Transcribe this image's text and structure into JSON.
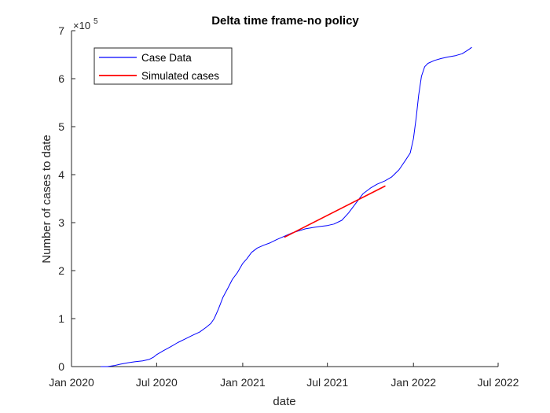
{
  "chart_data": {
    "type": "line",
    "title": "Delta time frame-no policy",
    "xlabel": "date",
    "ylabel": "Number of cases to date",
    "y_exponent_label": {
      "base": "×10",
      "exponent": "5"
    },
    "x_domain": [
      "2020-01-01",
      "2022-07-01"
    ],
    "x_ticks": [
      {
        "date": "2020-01-01",
        "label": "Jan 2020"
      },
      {
        "date": "2020-07-01",
        "label": "Jul 2020"
      },
      {
        "date": "2021-01-01",
        "label": "Jan 2021"
      },
      {
        "date": "2021-07-01",
        "label": "Jul 2021"
      },
      {
        "date": "2022-01-01",
        "label": "Jan 2022"
      },
      {
        "date": "2022-07-01",
        "label": "Jul 2022"
      }
    ],
    "ylim": [
      0,
      7
    ],
    "y_ticks": [
      {
        "value": 0,
        "label": "0"
      },
      {
        "value": 1,
        "label": "1"
      },
      {
        "value": 2,
        "label": "2"
      },
      {
        "value": 3,
        "label": "3"
      },
      {
        "value": 4,
        "label": "4"
      },
      {
        "value": 5,
        "label": "5"
      },
      {
        "value": 6,
        "label": "6"
      },
      {
        "value": 7,
        "label": "7"
      }
    ],
    "grid": false,
    "legend_position": "top-left",
    "series": [
      {
        "name": "Case Data",
        "color": "#0000ff",
        "points": [
          [
            "2020-03-04",
            0.0
          ],
          [
            "2020-03-18",
            0.0
          ],
          [
            "2020-04-01",
            0.02
          ],
          [
            "2020-04-15",
            0.05
          ],
          [
            "2020-05-01",
            0.08
          ],
          [
            "2020-05-15",
            0.1
          ],
          [
            "2020-06-01",
            0.12
          ],
          [
            "2020-06-15",
            0.15
          ],
          [
            "2020-06-25",
            0.2
          ],
          [
            "2020-07-01",
            0.25
          ],
          [
            "2020-07-15",
            0.33
          ],
          [
            "2020-08-01",
            0.42
          ],
          [
            "2020-08-15",
            0.5
          ],
          [
            "2020-09-01",
            0.58
          ],
          [
            "2020-09-15",
            0.65
          ],
          [
            "2020-10-01",
            0.72
          ],
          [
            "2020-10-15",
            0.82
          ],
          [
            "2020-10-25",
            0.9
          ],
          [
            "2020-11-01",
            1.0
          ],
          [
            "2020-11-10",
            1.2
          ],
          [
            "2020-11-20",
            1.45
          ],
          [
            "2020-12-01",
            1.65
          ],
          [
            "2020-12-10",
            1.82
          ],
          [
            "2020-12-20",
            1.95
          ],
          [
            "2021-01-01",
            2.15
          ],
          [
            "2021-01-10",
            2.25
          ],
          [
            "2021-01-20",
            2.38
          ],
          [
            "2021-02-01",
            2.47
          ],
          [
            "2021-02-15",
            2.53
          ],
          [
            "2021-03-01",
            2.58
          ],
          [
            "2021-03-15",
            2.65
          ],
          [
            "2021-04-01",
            2.72
          ],
          [
            "2021-04-15",
            2.78
          ],
          [
            "2021-05-01",
            2.83
          ],
          [
            "2021-05-15",
            2.87
          ],
          [
            "2021-06-01",
            2.9
          ],
          [
            "2021-06-15",
            2.92
          ],
          [
            "2021-07-01",
            2.94
          ],
          [
            "2021-07-15",
            2.97
          ],
          [
            "2021-08-01",
            3.05
          ],
          [
            "2021-08-15",
            3.2
          ],
          [
            "2021-09-01",
            3.42
          ],
          [
            "2021-09-15",
            3.6
          ],
          [
            "2021-10-01",
            3.72
          ],
          [
            "2021-10-15",
            3.8
          ],
          [
            "2021-11-01",
            3.87
          ],
          [
            "2021-11-15",
            3.95
          ],
          [
            "2021-12-01",
            4.1
          ],
          [
            "2021-12-15",
            4.3
          ],
          [
            "2021-12-25",
            4.45
          ],
          [
            "2022-01-01",
            4.75
          ],
          [
            "2022-01-07",
            5.2
          ],
          [
            "2022-01-12",
            5.65
          ],
          [
            "2022-01-18",
            6.05
          ],
          [
            "2022-01-25",
            6.25
          ],
          [
            "2022-02-01",
            6.32
          ],
          [
            "2022-02-15",
            6.38
          ],
          [
            "2022-03-01",
            6.42
          ],
          [
            "2022-03-15",
            6.45
          ],
          [
            "2022-04-01",
            6.48
          ],
          [
            "2022-04-15",
            6.52
          ],
          [
            "2022-04-25",
            6.58
          ],
          [
            "2022-05-01",
            6.62
          ],
          [
            "2022-05-05",
            6.65
          ]
        ]
      },
      {
        "name": "Simulated cases",
        "color": "#ff0000",
        "points": [
          [
            "2021-04-01",
            2.7
          ],
          [
            "2021-11-01",
            3.76
          ]
        ]
      }
    ]
  }
}
